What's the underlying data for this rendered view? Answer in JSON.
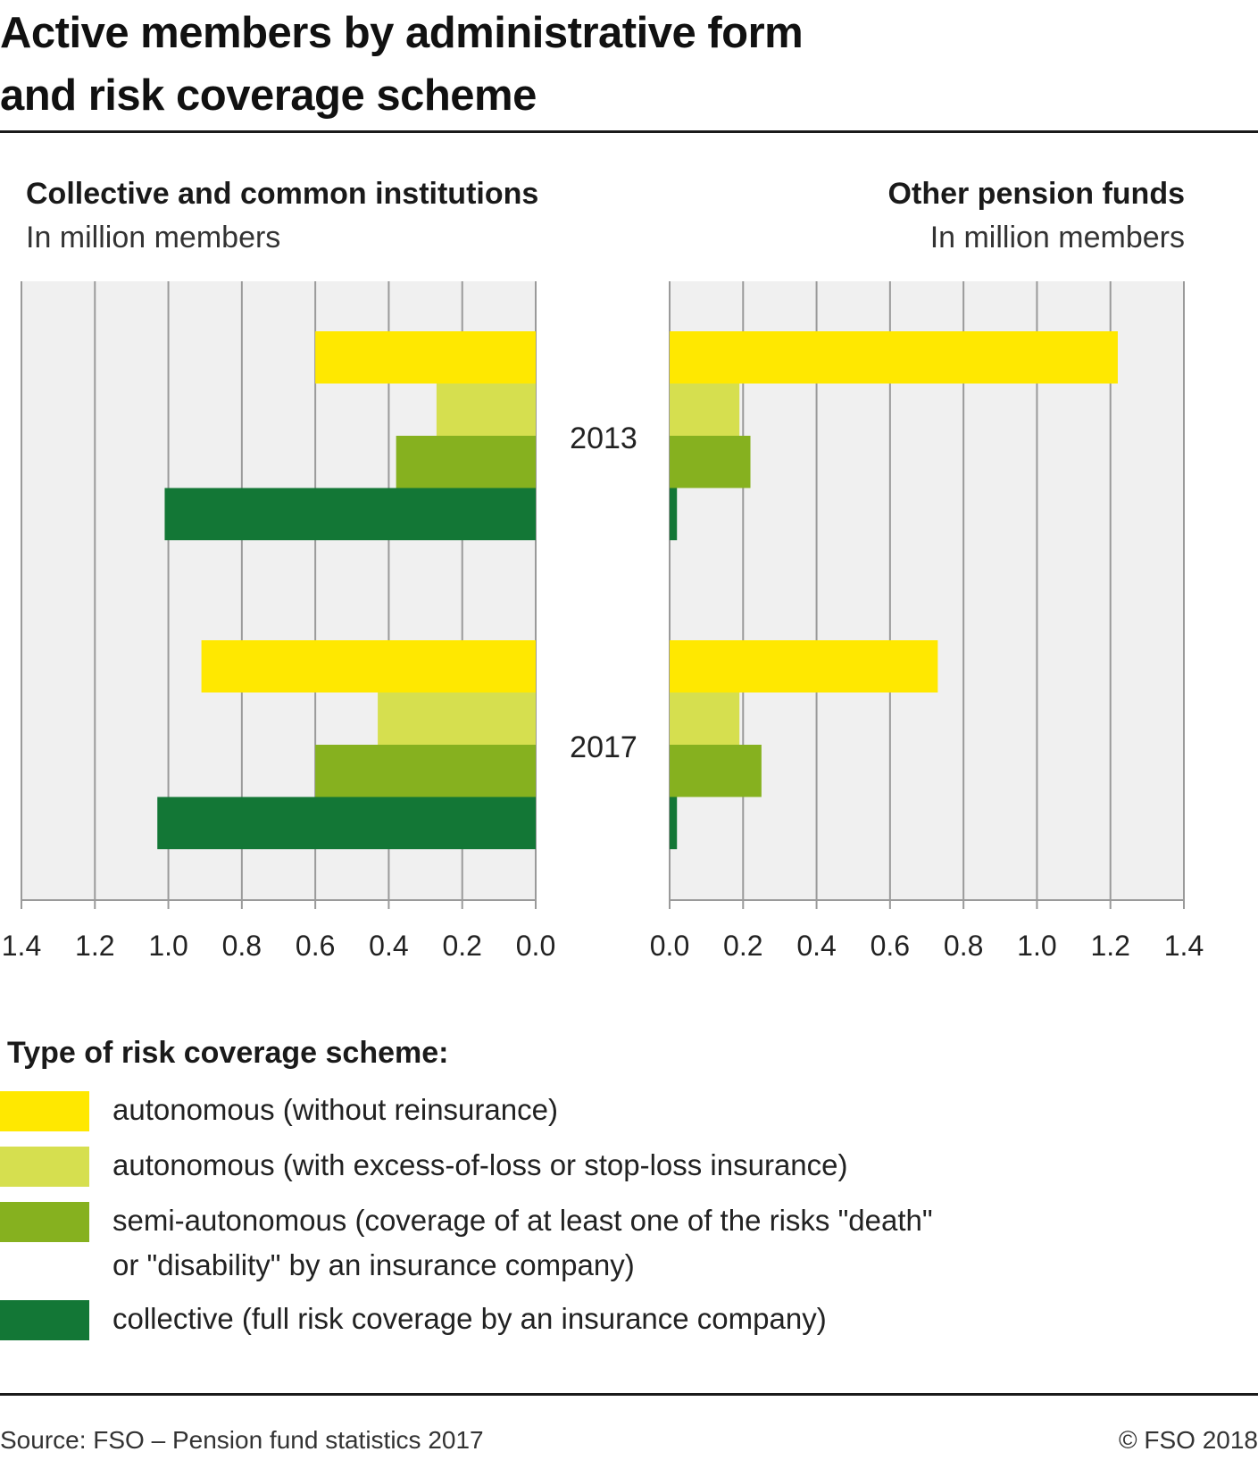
{
  "title_lines": [
    "Active members by administrative form",
    "and risk coverage scheme"
  ],
  "left_panel": {
    "title": "Collective and common institutions",
    "unit": "In million members"
  },
  "right_panel": {
    "title": "Other pension funds",
    "unit": "In million members"
  },
  "legend": {
    "title": "Type of risk coverage scheme:",
    "items": [
      {
        "lines": [
          "autonomous (without reinsurance)"
        ],
        "color": "#ffe800"
      },
      {
        "lines": [
          "autonomous (with excess-of-loss or stop-loss insurance)"
        ],
        "color": "#d6df4f"
      },
      {
        "lines": [
          "semi-autonomous (coverage of at least one of the risks \"death\"",
          "or \"disability\" by an insurance company)"
        ],
        "color": "#86b11f"
      },
      {
        "lines": [
          "collective (full risk coverage by an insurance company)"
        ],
        "color": "#137736"
      }
    ]
  },
  "footer": {
    "source": "Source: FSO – Pension fund statistics 2017",
    "copyright": "© FSO 2018"
  },
  "chart_data": [
    {
      "type": "bar",
      "orientation": "horizontal",
      "direction": "reversed",
      "title": "Collective and common institutions",
      "unit": "In million members",
      "categories": [
        "2013",
        "2017"
      ],
      "xlim": [
        0,
        1.4
      ],
      "ticks": [
        "1.4",
        "1.2",
        "1.0",
        "0.8",
        "0.6",
        "0.4",
        "0.2",
        "0.0"
      ],
      "grid": true,
      "series": [
        {
          "name": "autonomous (without reinsurance)",
          "color": "#ffe800",
          "values": [
            0.6,
            0.91
          ]
        },
        {
          "name": "autonomous (with excess-of-loss or stop-loss insurance)",
          "color": "#d6df4f",
          "values": [
            0.27,
            0.43
          ]
        },
        {
          "name": "semi-autonomous (coverage of at least one of the risks \"death\" or \"disability\" by an insurance company)",
          "color": "#86b11f",
          "values": [
            0.38,
            0.6
          ]
        },
        {
          "name": "collective (full risk coverage by an insurance company)",
          "color": "#137736",
          "values": [
            1.01,
            1.03
          ]
        }
      ]
    },
    {
      "type": "bar",
      "orientation": "horizontal",
      "direction": "normal",
      "title": "Other pension funds",
      "unit": "In million members",
      "categories": [
        "2013",
        "2017"
      ],
      "xlim": [
        0,
        1.4
      ],
      "ticks": [
        "0.0",
        "0.2",
        "0.4",
        "0.6",
        "0.8",
        "1.0",
        "1.2",
        "1.4"
      ],
      "grid": true,
      "series": [
        {
          "name": "autonomous (without reinsurance)",
          "color": "#ffe800",
          "values": [
            1.22,
            0.73
          ]
        },
        {
          "name": "autonomous (with excess-of-loss or stop-loss insurance)",
          "color": "#d6df4f",
          "values": [
            0.19,
            0.19
          ]
        },
        {
          "name": "semi-autonomous (coverage of at least one of the risks \"death\" or \"disability\" by an insurance company)",
          "color": "#86b11f",
          "values": [
            0.22,
            0.25
          ]
        },
        {
          "name": "collective (full risk coverage by an insurance company)",
          "color": "#137736",
          "values": [
            0.02,
            0.02
          ]
        }
      ]
    }
  ]
}
